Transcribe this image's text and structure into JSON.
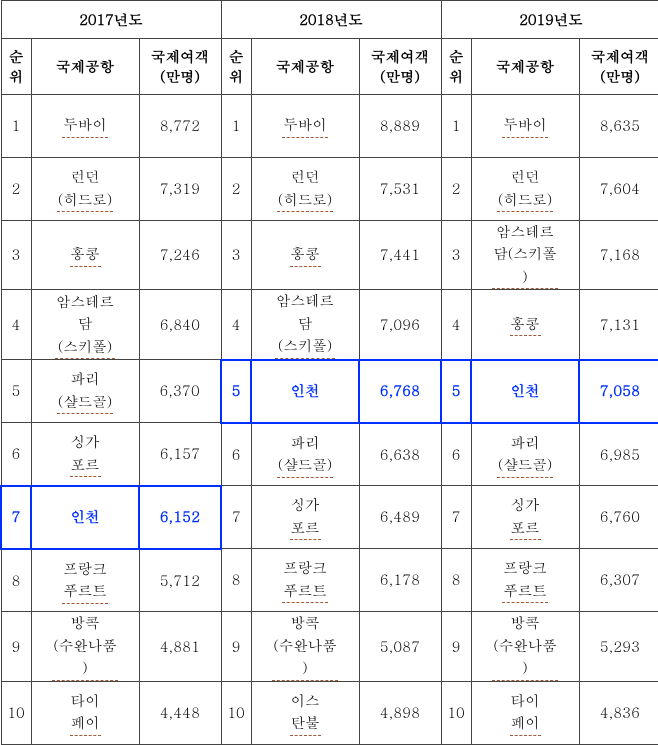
{
  "years": [
    "2017년도",
    "2018년도",
    "2019년도"
  ],
  "headers": {
    "rank": "순\n위",
    "airport": "국제공항",
    "pax": "국제여객\n(만명)"
  },
  "highlightAirport": "인천",
  "highlightColor": "#0030ff",
  "dashedUnderlineColor": "#a05a3a",
  "fontFamily": "Batang",
  "fontSizePt": 11,
  "data": {
    "2017": [
      {
        "rank": 1,
        "airport": "두바이",
        "pax": "8,772"
      },
      {
        "rank": 2,
        "airport": "런던\n(히드로)",
        "pax": "7,319"
      },
      {
        "rank": 3,
        "airport": "홍콩",
        "pax": "7,246"
      },
      {
        "rank": 4,
        "airport": "암스테르\n담\n(스키폴)",
        "pax": "6,840"
      },
      {
        "rank": 5,
        "airport": "파리\n(샬드골)",
        "pax": "6,370"
      },
      {
        "rank": 6,
        "airport": "싱가\n포르",
        "pax": "6,157"
      },
      {
        "rank": 7,
        "airport": "인천",
        "pax": "6,152"
      },
      {
        "rank": 8,
        "airport": "프랑크\n푸르트",
        "pax": "5,712"
      },
      {
        "rank": 9,
        "airport": "방콕\n(수완나품\n)",
        "pax": "4,881"
      },
      {
        "rank": 10,
        "airport": "타이\n페이",
        "pax": "4,448"
      }
    ],
    "2018": [
      {
        "rank": 1,
        "airport": "두바이",
        "pax": "8,889"
      },
      {
        "rank": 2,
        "airport": "런던\n(히드로)",
        "pax": "7,531"
      },
      {
        "rank": 3,
        "airport": "홍콩",
        "pax": "7,441"
      },
      {
        "rank": 4,
        "airport": "암스테르\n담\n(스키폴)",
        "pax": "7,096"
      },
      {
        "rank": 5,
        "airport": "인천",
        "pax": "6,768"
      },
      {
        "rank": 6,
        "airport": "파리\n(샬드골)",
        "pax": "6,638"
      },
      {
        "rank": 7,
        "airport": "싱가\n포르",
        "pax": "6,489"
      },
      {
        "rank": 8,
        "airport": "프랑크\n푸르트",
        "pax": "6,178"
      },
      {
        "rank": 9,
        "airport": "방콕\n(수완나품\n)",
        "pax": "5,087"
      },
      {
        "rank": 10,
        "airport": "이스\n탄불",
        "pax": "4,898"
      }
    ],
    "2019": [
      {
        "rank": 1,
        "airport": "두바이",
        "pax": "8,635"
      },
      {
        "rank": 2,
        "airport": "런던\n(히드로)",
        "pax": "7,604"
      },
      {
        "rank": 3,
        "airport": "암스테르\n담(스키폴\n)",
        "pax": "7,168"
      },
      {
        "rank": 4,
        "airport": "홍콩",
        "pax": "7,131"
      },
      {
        "rank": 5,
        "airport": "인천",
        "pax": "7,058"
      },
      {
        "rank": 6,
        "airport": "파리\n(샬드골)",
        "pax": "6,985"
      },
      {
        "rank": 7,
        "airport": "싱가\n포르",
        "pax": "6,760"
      },
      {
        "rank": 8,
        "airport": "프랑크\n푸르트",
        "pax": "6,307"
      },
      {
        "rank": 9,
        "airport": "방콕\n(수완나품\n)",
        "pax": "5,293"
      },
      {
        "rank": 10,
        "airport": "타이\n페이",
        "pax": "4,836"
      }
    ]
  },
  "tableStyle": {
    "borderColor": "#444444",
    "highlightBorderWidthPx": 2,
    "cellHeightPx": 63,
    "rankColWidthPx": 30,
    "airportColWidthPx": 108,
    "paxColWidthPx": 82
  }
}
